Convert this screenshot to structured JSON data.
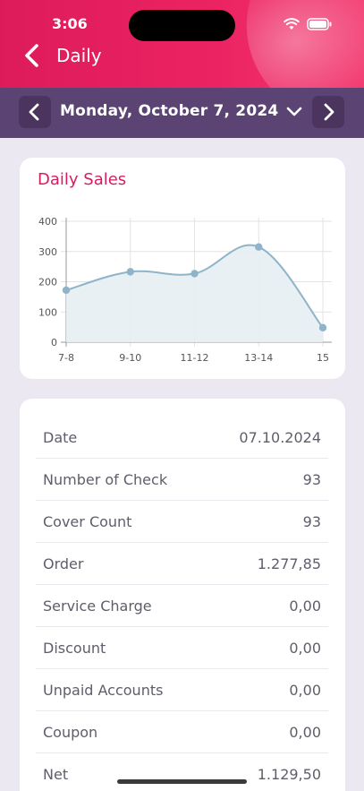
{
  "status_bar": {
    "time": "3:06"
  },
  "header": {
    "title": "Daily"
  },
  "date_bar": {
    "date": "Monday, October 7, 2024"
  },
  "chart_card": {
    "title": "Daily Sales"
  },
  "chart_data": {
    "type": "line",
    "title": "Daily Sales",
    "categories": [
      "7-8",
      "9-10",
      "11-12",
      "13-14",
      "15"
    ],
    "values": [
      172,
      233,
      227,
      315,
      48
    ],
    "yticks": [
      "0",
      "100",
      "200",
      "300",
      "400"
    ],
    "ylim": [
      0,
      400
    ],
    "xlabel": "",
    "ylabel": "",
    "grid": true,
    "smooth": true,
    "line_color": "#8fb3c9",
    "fill_color": "#e6eef3"
  },
  "summary": {
    "rows": [
      {
        "label": "Date",
        "value": "07.10.2024"
      },
      {
        "label": "Number of Check",
        "value": "93"
      },
      {
        "label": "Cover Count",
        "value": "93"
      },
      {
        "label": "Order",
        "value": "1.277,85"
      },
      {
        "label": "Service Charge",
        "value": "0,00"
      },
      {
        "label": "Discount",
        "value": "0,00"
      },
      {
        "label": "Unpaid Accounts",
        "value": "0,00"
      },
      {
        "label": "Coupon",
        "value": "0,00"
      },
      {
        "label": "Net",
        "value": "1.129,50"
      }
    ]
  },
  "colors": {
    "header": "#ec2363",
    "date_bar": "#5b4373",
    "accent": "#d81b60",
    "background": "#ebe8f2"
  }
}
